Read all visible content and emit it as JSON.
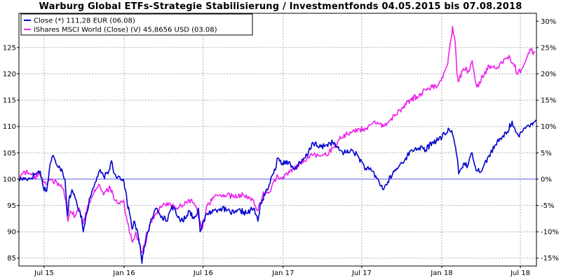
{
  "chart_data": {
    "type": "line",
    "title": "Warburg Global ETFs-Strategie Stabilisierung / Investmentfonds 04.05.2015 bis 07.08.2018",
    "xlabel": "",
    "ylabel": "",
    "x_tick_labels": [
      "Jul 15",
      "Jan 16",
      "Jul 16",
      "Jan 17",
      "Jul 17",
      "Jan 18",
      "Jul 18"
    ],
    "x_tick_dates": [
      "2015-07-01",
      "2016-01-01",
      "2016-07-01",
      "2017-01-01",
      "2017-07-01",
      "2018-01-01",
      "2018-07-01"
    ],
    "x_range": [
      "2015-05-04",
      "2018-08-07"
    ],
    "y_left_ticks": [
      85,
      90,
      95,
      100,
      105,
      110,
      115,
      120,
      125
    ],
    "y_left_range": [
      83.5,
      131.5
    ],
    "y_right_ticks": [
      "30%",
      "25%",
      "20%",
      "15%",
      "10%",
      "5%",
      "0%",
      "-5%",
      "-10%",
      "-15%"
    ],
    "grid": true,
    "legend_position": "top-left",
    "series": [
      {
        "name": "Close (*) 111,28 EUR (06.08)",
        "color": "#0000cc",
        "points": [
          [
            "2015-05-04",
            100.0
          ],
          [
            "2015-05-20",
            100.1
          ],
          [
            "2015-06-01",
            100.2
          ],
          [
            "2015-06-10",
            101.0
          ],
          [
            "2015-06-22",
            101.5
          ],
          [
            "2015-06-29",
            98.5
          ],
          [
            "2015-07-07",
            97.8
          ],
          [
            "2015-07-15",
            103.0
          ],
          [
            "2015-07-21",
            104.5
          ],
          [
            "2015-07-28",
            103.0
          ],
          [
            "2015-08-05",
            102.5
          ],
          [
            "2015-08-12",
            101.5
          ],
          [
            "2015-08-18",
            100.0
          ],
          [
            "2015-08-24",
            93.0
          ],
          [
            "2015-08-27",
            96.0
          ],
          [
            "2015-09-03",
            98.0
          ],
          [
            "2015-09-10",
            96.5
          ],
          [
            "2015-09-18",
            94.0
          ],
          [
            "2015-09-25",
            93.0
          ],
          [
            "2015-09-29",
            90.0
          ],
          [
            "2015-10-05",
            93.0
          ],
          [
            "2015-10-15",
            96.5
          ],
          [
            "2015-10-25",
            99.0
          ],
          [
            "2015-11-05",
            101.5
          ],
          [
            "2015-11-15",
            100.5
          ],
          [
            "2015-11-25",
            101.0
          ],
          [
            "2015-12-03",
            103.5
          ],
          [
            "2015-12-10",
            101.0
          ],
          [
            "2015-12-18",
            100.5
          ],
          [
            "2015-12-30",
            100.0
          ],
          [
            "2016-01-04",
            98.0
          ],
          [
            "2016-01-08",
            95.5
          ],
          [
            "2016-01-15",
            93.0
          ],
          [
            "2016-01-20",
            90.5
          ],
          [
            "2016-01-25",
            92.0
          ],
          [
            "2016-02-03",
            89.0
          ],
          [
            "2016-02-08",
            86.5
          ],
          [
            "2016-02-11",
            84.0
          ],
          [
            "2016-02-16",
            87.0
          ],
          [
            "2016-02-25",
            90.0
          ],
          [
            "2016-03-05",
            92.5
          ],
          [
            "2016-03-15",
            94.5
          ],
          [
            "2016-03-28",
            93.0
          ],
          [
            "2016-04-08",
            92.0
          ],
          [
            "2016-04-20",
            95.0
          ],
          [
            "2016-05-02",
            93.0
          ],
          [
            "2016-05-15",
            92.0
          ],
          [
            "2016-05-30",
            94.0
          ],
          [
            "2016-06-10",
            92.5
          ],
          [
            "2016-06-20",
            94.5
          ],
          [
            "2016-06-24",
            90.0
          ],
          [
            "2016-06-28",
            91.0
          ],
          [
            "2016-07-10",
            93.5
          ],
          [
            "2016-07-25",
            94.0
          ],
          [
            "2016-08-10",
            94.5
          ],
          [
            "2016-08-25",
            94.0
          ],
          [
            "2016-09-10",
            93.5
          ],
          [
            "2016-09-25",
            94.0
          ],
          [
            "2016-10-10",
            93.5
          ],
          [
            "2016-10-25",
            94.5
          ],
          [
            "2016-11-04",
            92.0
          ],
          [
            "2016-11-09",
            95.0
          ],
          [
            "2016-11-20",
            97.0
          ],
          [
            "2016-11-30",
            99.0
          ],
          [
            "2016-12-10",
            101.0
          ],
          [
            "2016-12-20",
            104.0
          ],
          [
            "2016-12-30",
            103.0
          ],
          [
            "2017-01-10",
            103.5
          ],
          [
            "2017-01-25",
            102.0
          ],
          [
            "2017-02-10",
            103.0
          ],
          [
            "2017-02-25",
            104.5
          ],
          [
            "2017-03-10",
            107.0
          ],
          [
            "2017-03-25",
            106.0
          ],
          [
            "2017-04-10",
            106.5
          ],
          [
            "2017-04-25",
            107.0
          ],
          [
            "2017-05-10",
            105.5
          ],
          [
            "2017-05-25",
            105.0
          ],
          [
            "2017-06-10",
            105.5
          ],
          [
            "2017-06-25",
            104.0
          ],
          [
            "2017-07-10",
            102.0
          ],
          [
            "2017-07-25",
            101.5
          ],
          [
            "2017-08-10",
            99.5
          ],
          [
            "2017-08-20",
            98.0
          ],
          [
            "2017-08-30",
            99.5
          ],
          [
            "2017-09-10",
            101.0
          ],
          [
            "2017-09-25",
            102.5
          ],
          [
            "2017-10-10",
            104.0
          ],
          [
            "2017-10-25",
            105.5
          ],
          [
            "2017-11-10",
            106.0
          ],
          [
            "2017-11-25",
            105.5
          ],
          [
            "2017-12-10",
            107.0
          ],
          [
            "2017-12-25",
            107.5
          ],
          [
            "2018-01-08",
            108.5
          ],
          [
            "2018-01-18",
            109.5
          ],
          [
            "2018-01-26",
            108.5
          ],
          [
            "2018-02-02",
            106.0
          ],
          [
            "2018-02-06",
            104.0
          ],
          [
            "2018-02-09",
            101.0
          ],
          [
            "2018-02-20",
            103.0
          ],
          [
            "2018-03-02",
            102.5
          ],
          [
            "2018-03-12",
            105.0
          ],
          [
            "2018-03-23",
            101.5
          ],
          [
            "2018-04-05",
            102.0
          ],
          [
            "2018-04-20",
            104.5
          ],
          [
            "2018-05-05",
            106.5
          ],
          [
            "2018-05-20",
            108.0
          ],
          [
            "2018-06-01",
            109.0
          ],
          [
            "2018-06-12",
            111.0
          ],
          [
            "2018-06-20",
            109.0
          ],
          [
            "2018-06-28",
            108.0
          ],
          [
            "2018-07-05",
            109.0
          ],
          [
            "2018-07-15",
            110.0
          ],
          [
            "2018-07-25",
            110.5
          ],
          [
            "2018-08-06",
            111.28
          ]
        ]
      },
      {
        "name": "iShares MSCI World (Close) (V) 45,8656 USD (03.08)",
        "color": "#ee22ee",
        "points": [
          [
            "2015-05-04",
            100.0
          ],
          [
            "2015-05-15",
            101.5
          ],
          [
            "2015-05-28",
            101.0
          ],
          [
            "2015-06-10",
            100.5
          ],
          [
            "2015-06-20",
            101.0
          ],
          [
            "2015-06-29",
            99.5
          ],
          [
            "2015-07-07",
            99.0
          ],
          [
            "2015-07-15",
            100.0
          ],
          [
            "2015-07-25",
            99.5
          ],
          [
            "2015-08-05",
            99.0
          ],
          [
            "2015-08-15",
            98.0
          ],
          [
            "2015-08-20",
            96.0
          ],
          [
            "2015-08-25",
            92.0
          ],
          [
            "2015-08-30",
            94.0
          ],
          [
            "2015-09-10",
            93.0
          ],
          [
            "2015-09-20",
            94.5
          ],
          [
            "2015-09-29",
            91.5
          ],
          [
            "2015-10-10",
            95.0
          ],
          [
            "2015-10-25",
            98.0
          ],
          [
            "2015-11-05",
            99.0
          ],
          [
            "2015-11-15",
            97.0
          ],
          [
            "2015-11-30",
            98.5
          ],
          [
            "2015-12-10",
            96.0
          ],
          [
            "2015-12-20",
            95.5
          ],
          [
            "2015-12-31",
            96.0
          ],
          [
            "2016-01-08",
            92.0
          ],
          [
            "2016-01-15",
            89.5
          ],
          [
            "2016-01-20",
            88.0
          ],
          [
            "2016-01-28",
            90.0
          ],
          [
            "2016-02-05",
            88.0
          ],
          [
            "2016-02-11",
            86.0
          ],
          [
            "2016-02-20",
            89.0
          ],
          [
            "2016-03-01",
            91.5
          ],
          [
            "2016-03-15",
            93.5
          ],
          [
            "2016-03-30",
            95.0
          ],
          [
            "2016-04-15",
            95.5
          ],
          [
            "2016-04-30",
            94.5
          ],
          [
            "2016-05-15",
            95.0
          ],
          [
            "2016-05-30",
            96.0
          ],
          [
            "2016-06-10",
            95.5
          ],
          [
            "2016-06-24",
            92.0
          ],
          [
            "2016-06-28",
            90.5
          ],
          [
            "2016-07-10",
            95.0
          ],
          [
            "2016-07-25",
            96.5
          ],
          [
            "2016-08-10",
            97.0
          ],
          [
            "2016-08-25",
            97.0
          ],
          [
            "2016-09-10",
            96.5
          ],
          [
            "2016-09-25",
            97.0
          ],
          [
            "2016-10-10",
            96.5
          ],
          [
            "2016-10-25",
            96.0
          ],
          [
            "2016-11-04",
            94.0
          ],
          [
            "2016-11-15",
            97.0
          ],
          [
            "2016-11-30",
            97.5
          ],
          [
            "2016-12-10",
            99.5
          ],
          [
            "2016-12-20",
            100.5
          ],
          [
            "2016-12-30",
            100.0
          ],
          [
            "2017-01-10",
            101.0
          ],
          [
            "2017-01-25",
            102.0
          ],
          [
            "2017-02-10",
            103.0
          ],
          [
            "2017-02-25",
            104.0
          ],
          [
            "2017-03-10",
            104.5
          ],
          [
            "2017-03-25",
            104.5
          ],
          [
            "2017-04-10",
            104.5
          ],
          [
            "2017-04-25",
            106.0
          ],
          [
            "2017-05-10",
            107.5
          ],
          [
            "2017-05-25",
            108.5
          ],
          [
            "2017-06-10",
            109.0
          ],
          [
            "2017-06-25",
            109.5
          ],
          [
            "2017-07-10",
            109.5
          ],
          [
            "2017-07-25",
            110.5
          ],
          [
            "2017-08-10",
            110.5
          ],
          [
            "2017-08-20",
            110.0
          ],
          [
            "2017-09-01",
            111.0
          ],
          [
            "2017-09-15",
            112.0
          ],
          [
            "2017-10-01",
            113.5
          ],
          [
            "2017-10-20",
            115.0
          ],
          [
            "2017-11-10",
            116.0
          ],
          [
            "2017-11-25",
            117.0
          ],
          [
            "2017-12-10",
            117.5
          ],
          [
            "2017-12-25",
            118.0
          ],
          [
            "2018-01-05",
            120.0
          ],
          [
            "2018-01-15",
            122.0
          ],
          [
            "2018-01-26",
            129.0
          ],
          [
            "2018-02-01",
            126.0
          ],
          [
            "2018-02-05",
            120.0
          ],
          [
            "2018-02-08",
            118.5
          ],
          [
            "2018-02-20",
            121.0
          ],
          [
            "2018-03-05",
            120.5
          ],
          [
            "2018-03-12",
            122.5
          ],
          [
            "2018-03-23",
            117.5
          ],
          [
            "2018-04-05",
            119.5
          ],
          [
            "2018-04-20",
            121.5
          ],
          [
            "2018-05-05",
            121.0
          ],
          [
            "2018-05-20",
            122.0
          ],
          [
            "2018-06-05",
            123.5
          ],
          [
            "2018-06-15",
            122.0
          ],
          [
            "2018-06-25",
            120.0
          ],
          [
            "2018-07-05",
            121.0
          ],
          [
            "2018-07-15",
            123.0
          ],
          [
            "2018-07-25",
            124.5
          ],
          [
            "2018-08-03",
            124.0
          ]
        ]
      }
    ]
  }
}
